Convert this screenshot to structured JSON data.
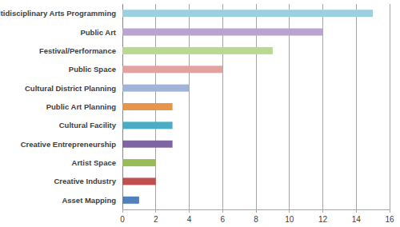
{
  "chart_data": {
    "type": "bar",
    "orientation": "horizontal",
    "categories": [
      "Multidisciplinary Arts Programming",
      "Public Art",
      "Festival/Performance",
      "Public Space",
      "Cultural District Planning",
      "Public Art Planning",
      "Cultural Facility",
      "Creative Entrepreneurship",
      "Artist Space",
      "Creative Industry",
      "Asset Mapping"
    ],
    "values": [
      15,
      12,
      9,
      6,
      4,
      3,
      3,
      3,
      2,
      2,
      1
    ],
    "colors": [
      "#9dd0de",
      "#b9a3d0",
      "#bad890",
      "#e3a2a0",
      "#a0b4d9",
      "#e8954c",
      "#4bacc6",
      "#7e64a1",
      "#9bbb59",
      "#c0504d",
      "#4f81bd"
    ],
    "xlim": [
      0,
      16
    ],
    "xticks": [
      0,
      2,
      4,
      6,
      8,
      10,
      12,
      14,
      16
    ],
    "grid": true
  }
}
